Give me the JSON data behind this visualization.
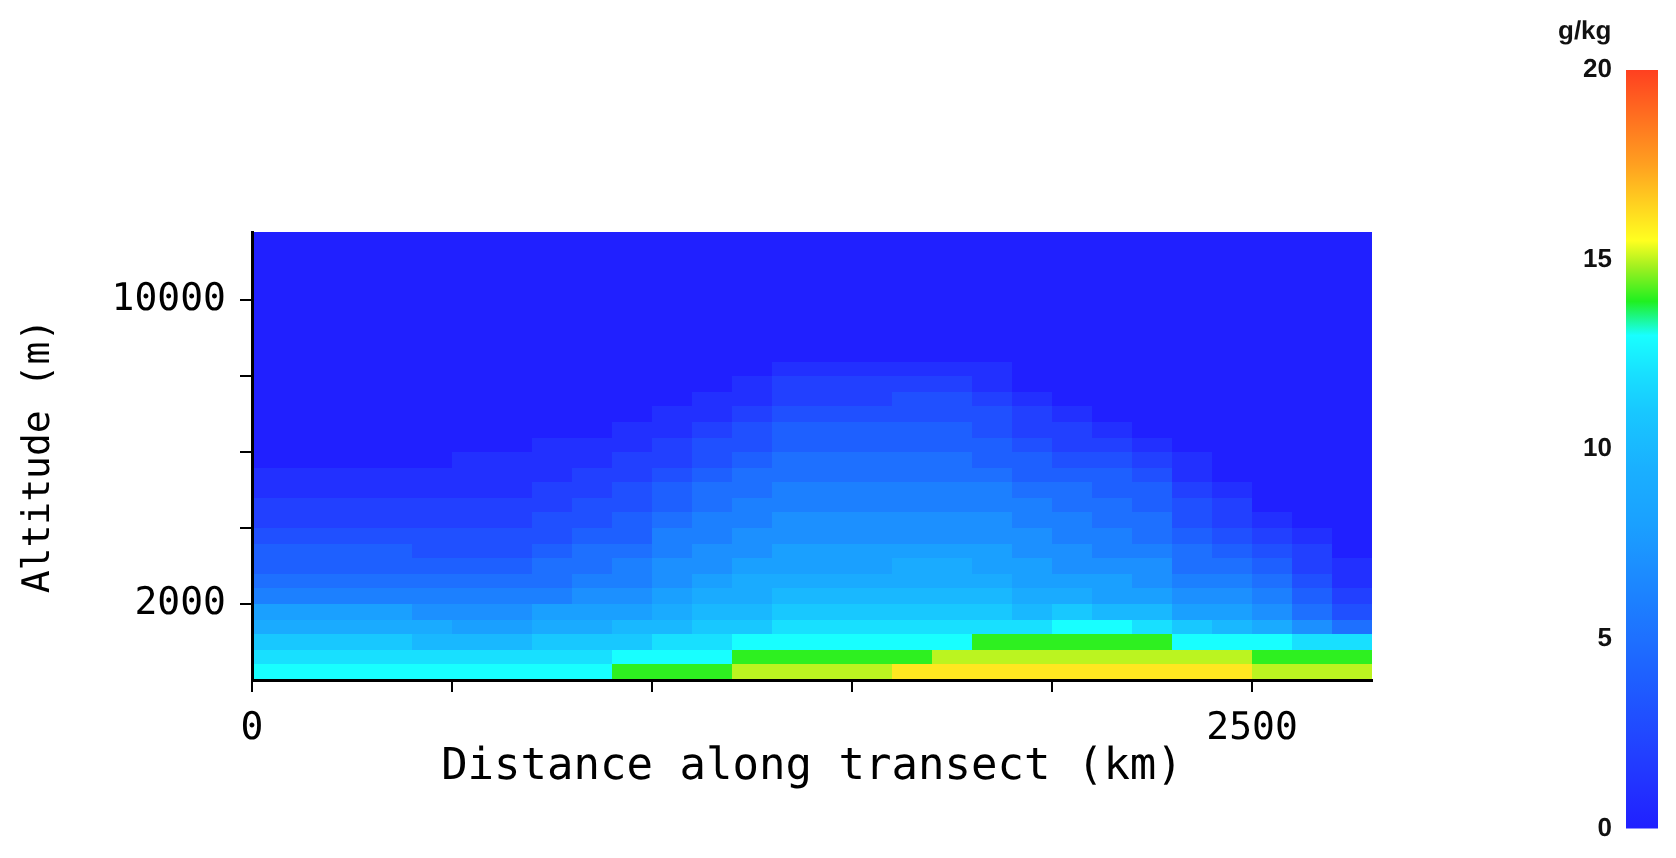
{
  "chart_data": {
    "type": "heatmap",
    "xlabel": "Distance along transect (km)",
    "ylabel": "Altitude (m)",
    "clabel": "g/kg",
    "x": [
      50,
      150,
      250,
      350,
      450,
      550,
      650,
      750,
      850,
      950,
      1050,
      1150,
      1250,
      1350,
      1450,
      1550,
      1650,
      1750,
      1850,
      1950,
      2050,
      2150,
      2250,
      2350,
      2450,
      2550,
      2650,
      2750
    ],
    "y": [
      11700,
      11400,
      11000,
      10600,
      10200,
      9800,
      9400,
      9000,
      8600,
      8200,
      7800,
      7400,
      7000,
      6600,
      6200,
      5800,
      5400,
      5000,
      4600,
      4200,
      3800,
      3400,
      3000,
      2600,
      2200,
      1800,
      1400,
      1000,
      600,
      200
    ],
    "xlim": [
      0,
      2800
    ],
    "xticks": [
      0,
      {
        "value": 500,
        "label": null
      },
      {
        "value": 1000,
        "label": null
      },
      {
        "value": 1500,
        "label": null
      },
      {
        "value": 2000,
        "label": null
      },
      2500
    ],
    "ylim": [
      0,
      11800
    ],
    "yticks": [
      2000,
      {
        "value": 4000,
        "label": null
      },
      {
        "value": 6000,
        "label": null
      },
      {
        "value": 8000,
        "label": null
      },
      10000
    ],
    "clim": [
      0,
      20
    ],
    "cticks": [
      0,
      5,
      10,
      15,
      20
    ],
    "cells": [
      [
        0,
        0,
        0,
        0,
        0,
        0,
        0,
        0,
        0,
        0,
        0,
        0,
        0,
        0,
        0,
        0,
        0,
        0,
        0,
        0,
        0,
        0,
        0,
        0,
        0,
        0,
        0,
        0
      ],
      [
        0,
        0,
        0,
        0,
        0,
        0,
        0,
        0,
        0,
        0,
        0,
        0,
        0,
        0,
        0,
        0,
        0,
        0,
        0,
        0,
        0,
        0,
        0,
        0,
        0,
        0,
        0,
        0
      ],
      [
        0,
        0,
        0,
        0,
        0,
        0,
        0,
        0,
        0,
        0,
        0,
        0,
        0,
        0,
        0,
        0,
        0,
        0,
        0,
        0,
        0,
        0,
        0,
        0,
        0,
        0,
        0,
        0
      ],
      [
        0,
        0,
        0,
        0,
        0,
        0,
        0,
        0,
        0,
        0,
        0,
        0,
        0,
        0,
        0,
        0,
        0,
        0,
        0,
        0,
        0,
        0,
        0,
        0,
        0,
        0,
        0,
        0
      ],
      [
        0,
        0,
        0,
        0,
        0,
        0,
        0,
        0,
        0,
        0,
        0,
        0,
        0,
        0,
        0,
        0,
        0,
        0,
        0,
        0,
        0,
        0,
        0,
        0,
        0,
        0,
        0,
        0
      ],
      [
        0,
        0,
        0,
        0,
        0,
        0,
        0,
        0,
        0,
        0,
        0,
        0,
        0,
        0,
        0,
        0,
        0,
        0,
        0,
        0,
        0,
        0,
        0,
        0,
        0,
        0,
        0,
        0
      ],
      [
        0,
        0,
        0,
        0,
        0,
        0,
        0,
        0,
        0,
        0,
        0,
        0,
        0,
        0,
        0,
        0,
        0,
        0,
        0,
        0,
        0,
        0,
        0,
        0,
        0,
        0,
        0,
        0
      ],
      [
        0,
        0,
        0,
        0,
        0,
        0,
        0,
        0,
        0,
        0,
        0,
        0,
        0,
        0,
        0,
        0,
        0,
        0,
        0,
        0,
        0,
        0,
        0,
        0,
        0,
        0,
        0,
        0
      ],
      [
        0,
        0,
        0,
        0,
        0,
        0,
        0,
        0,
        0,
        0,
        0,
        0,
        0,
        0,
        0,
        0,
        0,
        0,
        0,
        0,
        0,
        0,
        0,
        0,
        0,
        0,
        0,
        0
      ],
      [
        0,
        0,
        0,
        0,
        0,
        0,
        0,
        0,
        0,
        0,
        0,
        0,
        0,
        1,
        1,
        1,
        1,
        1,
        1,
        0,
        0,
        0,
        0,
        0,
        0,
        0,
        0,
        0
      ],
      [
        0,
        0,
        0,
        0,
        0,
        0,
        0,
        0,
        0,
        0,
        0,
        0,
        1,
        2,
        2,
        2,
        2,
        2,
        1,
        0,
        0,
        0,
        0,
        0,
        0,
        0,
        0,
        0
      ],
      [
        0,
        0,
        0,
        0,
        0,
        0,
        0,
        0,
        0,
        0,
        0,
        1,
        1,
        2,
        2,
        2,
        3,
        3,
        2,
        1,
        0,
        0,
        0,
        0,
        0,
        0,
        0,
        0
      ],
      [
        0,
        0,
        0,
        0,
        0,
        0,
        0,
        0,
        0,
        0,
        1,
        1,
        2,
        3,
        3,
        3,
        3,
        3,
        3,
        2,
        1,
        0,
        0,
        0,
        0,
        0,
        0,
        0
      ],
      [
        0,
        0,
        0,
        0,
        0,
        0,
        0,
        0,
        0,
        1,
        1,
        2,
        3,
        4,
        4,
        4,
        4,
        4,
        3,
        2,
        2,
        1,
        0,
        0,
        0,
        0,
        0,
        0
      ],
      [
        0,
        0,
        0,
        0,
        0,
        0,
        0,
        1,
        1,
        1,
        2,
        3,
        3,
        4,
        4,
        4,
        4,
        4,
        4,
        3,
        2,
        2,
        1,
        0,
        0,
        0,
        0,
        0
      ],
      [
        0,
        0,
        0,
        0,
        0,
        1,
        1,
        1,
        1,
        2,
        2,
        3,
        4,
        5,
        5,
        5,
        5,
        5,
        4,
        4,
        3,
        3,
        2,
        1,
        0,
        0,
        0,
        0
      ],
      [
        1,
        1,
        1,
        1,
        1,
        1,
        1,
        1,
        2,
        2,
        3,
        4,
        5,
        5,
        5,
        5,
        5,
        5,
        5,
        4,
        4,
        4,
        3,
        1,
        0,
        0,
        0,
        0
      ],
      [
        1,
        1,
        1,
        1,
        1,
        1,
        1,
        2,
        2,
        3,
        4,
        5,
        5,
        6,
        6,
        6,
        6,
        6,
        6,
        5,
        5,
        4,
        4,
        2,
        1,
        0,
        0,
        0
      ],
      [
        2,
        2,
        2,
        2,
        2,
        2,
        2,
        2,
        3,
        3,
        4,
        5,
        6,
        6,
        6,
        6,
        6,
        6,
        6,
        6,
        5,
        5,
        4,
        3,
        2,
        0,
        0,
        0
      ],
      [
        2,
        2,
        2,
        2,
        2,
        2,
        2,
        3,
        3,
        4,
        5,
        6,
        6,
        7,
        7,
        7,
        7,
        7,
        7,
        6,
        6,
        5,
        5,
        3,
        2,
        1,
        0,
        0
      ],
      [
        3,
        3,
        3,
        3,
        3,
        3,
        3,
        3,
        4,
        4,
        6,
        6,
        7,
        7,
        7,
        7,
        7,
        7,
        7,
        7,
        6,
        6,
        5,
        4,
        3,
        2,
        1,
        0
      ],
      [
        4,
        4,
        4,
        4,
        3,
        3,
        3,
        4,
        5,
        5,
        6,
        7,
        7,
        8,
        8,
        8,
        8,
        8,
        8,
        7,
        7,
        6,
        6,
        5,
        4,
        3,
        2,
        0
      ],
      [
        4,
        4,
        4,
        4,
        4,
        4,
        4,
        5,
        5,
        6,
        7,
        7,
        8,
        8,
        8,
        8,
        9,
        9,
        8,
        8,
        7,
        7,
        7,
        5,
        5,
        4,
        2,
        1
      ],
      [
        5,
        5,
        5,
        5,
        5,
        5,
        5,
        5,
        6,
        6,
        7,
        8,
        9,
        9,
        9,
        9,
        9,
        9,
        9,
        8,
        8,
        8,
        7,
        6,
        6,
        5,
        3,
        1
      ],
      [
        6,
        6,
        6,
        6,
        6,
        6,
        6,
        6,
        7,
        7,
        8,
        9,
        9,
        10,
        10,
        10,
        10,
        10,
        10,
        9,
        9,
        8,
        8,
        7,
        7,
        6,
        4,
        2
      ],
      [
        8,
        8,
        8,
        8,
        7,
        7,
        7,
        8,
        8,
        8,
        9,
        10,
        10,
        11,
        11,
        11,
        11,
        11,
        11,
        10,
        11,
        10,
        10,
        8,
        8,
        7,
        5,
        3
      ],
      [
        9,
        9,
        9,
        9,
        9,
        8,
        8,
        9,
        9,
        10,
        10,
        11,
        11,
        12,
        12,
        12,
        12,
        12,
        12,
        12,
        13,
        13,
        12,
        11,
        10,
        9,
        7,
        5
      ],
      [
        11,
        11,
        11,
        11,
        10,
        10,
        10,
        11,
        11,
        11,
        12,
        12,
        13,
        13,
        13,
        13,
        13,
        13,
        14,
        14,
        14,
        14,
        14,
        13,
        13,
        13,
        12,
        12
      ],
      [
        12,
        12,
        12,
        12,
        12,
        12,
        12,
        12,
        12,
        13,
        13,
        13,
        14,
        14,
        14,
        14,
        14,
        15,
        15,
        15,
        15,
        15,
        15,
        15,
        15,
        14,
        14,
        14
      ],
      [
        13,
        13,
        13,
        13,
        13,
        13,
        13,
        13,
        13,
        14,
        14,
        14,
        15,
        15,
        15,
        15,
        16,
        16,
        16,
        16,
        16,
        16,
        16,
        16,
        16,
        15,
        15,
        15
      ]
    ]
  }
}
